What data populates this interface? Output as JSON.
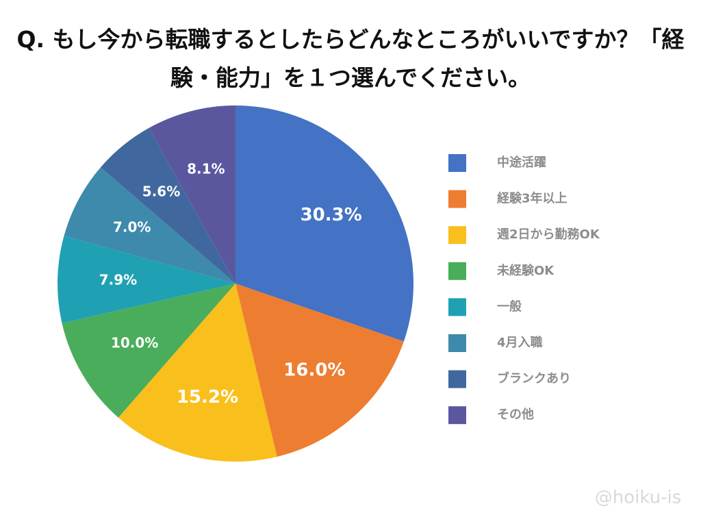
{
  "chart_data": {
    "type": "pie",
    "title": "Q. もし今から転職するとしたらどんなところがいいですか？「経験・能力」を１つ選んでください。",
    "categories": [
      "中途活躍",
      "経験3年以上",
      "週2日から勤務OK",
      "未経験OK",
      "一般",
      "4月入職",
      "ブランクあり",
      "その他"
    ],
    "values": [
      30.3,
      16.0,
      15.2,
      10.0,
      7.9,
      7.0,
      5.6,
      8.1
    ],
    "value_labels": [
      "30.3%",
      "16.0%",
      "15.2%",
      "10.0%",
      "7.9%",
      "7.0%",
      "5.6%",
      "8.1%"
    ],
    "colors": [
      "#4472c4",
      "#ed7d31",
      "#f9bf1c",
      "#4aad5b",
      "#1fa1b3",
      "#3e8aad",
      "#41689e",
      "#5b579f"
    ],
    "legend": "right",
    "watermark": "@hoiku-is"
  }
}
